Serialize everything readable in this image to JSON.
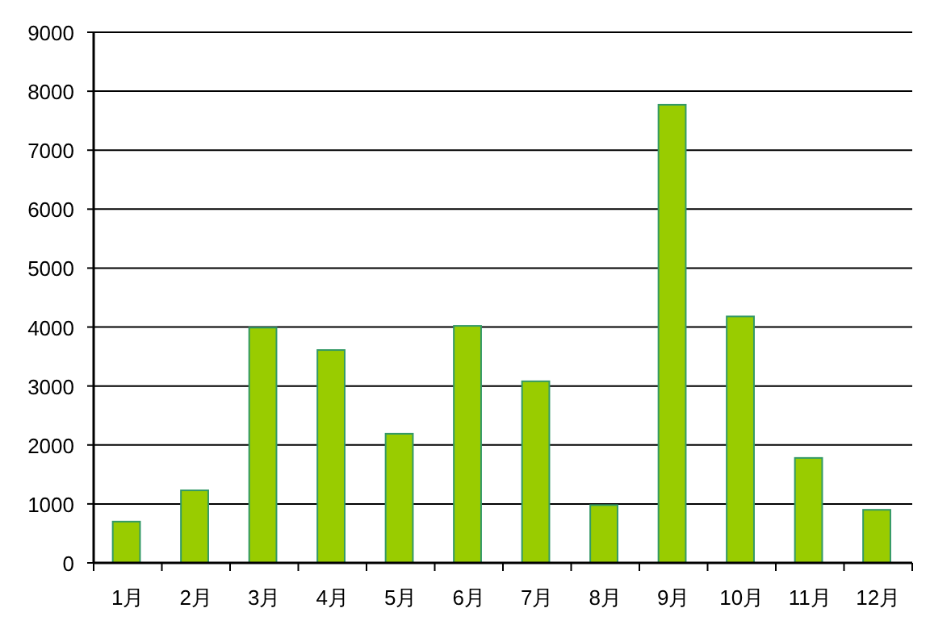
{
  "chart_data": {
    "type": "bar",
    "categories": [
      "1月",
      "2月",
      "3月",
      "4月",
      "5月",
      "6月",
      "7月",
      "8月",
      "9月",
      "10月",
      "11月",
      "12月"
    ],
    "values": [
      700,
      1230,
      3990,
      3610,
      2190,
      4020,
      3080,
      980,
      7770,
      4180,
      1780,
      900
    ],
    "color": "#99cc00",
    "ylim": [
      0,
      9000
    ],
    "yticks": [
      0,
      1000,
      2000,
      3000,
      4000,
      5000,
      6000,
      7000,
      8000,
      9000
    ],
    "grid": "y"
  }
}
